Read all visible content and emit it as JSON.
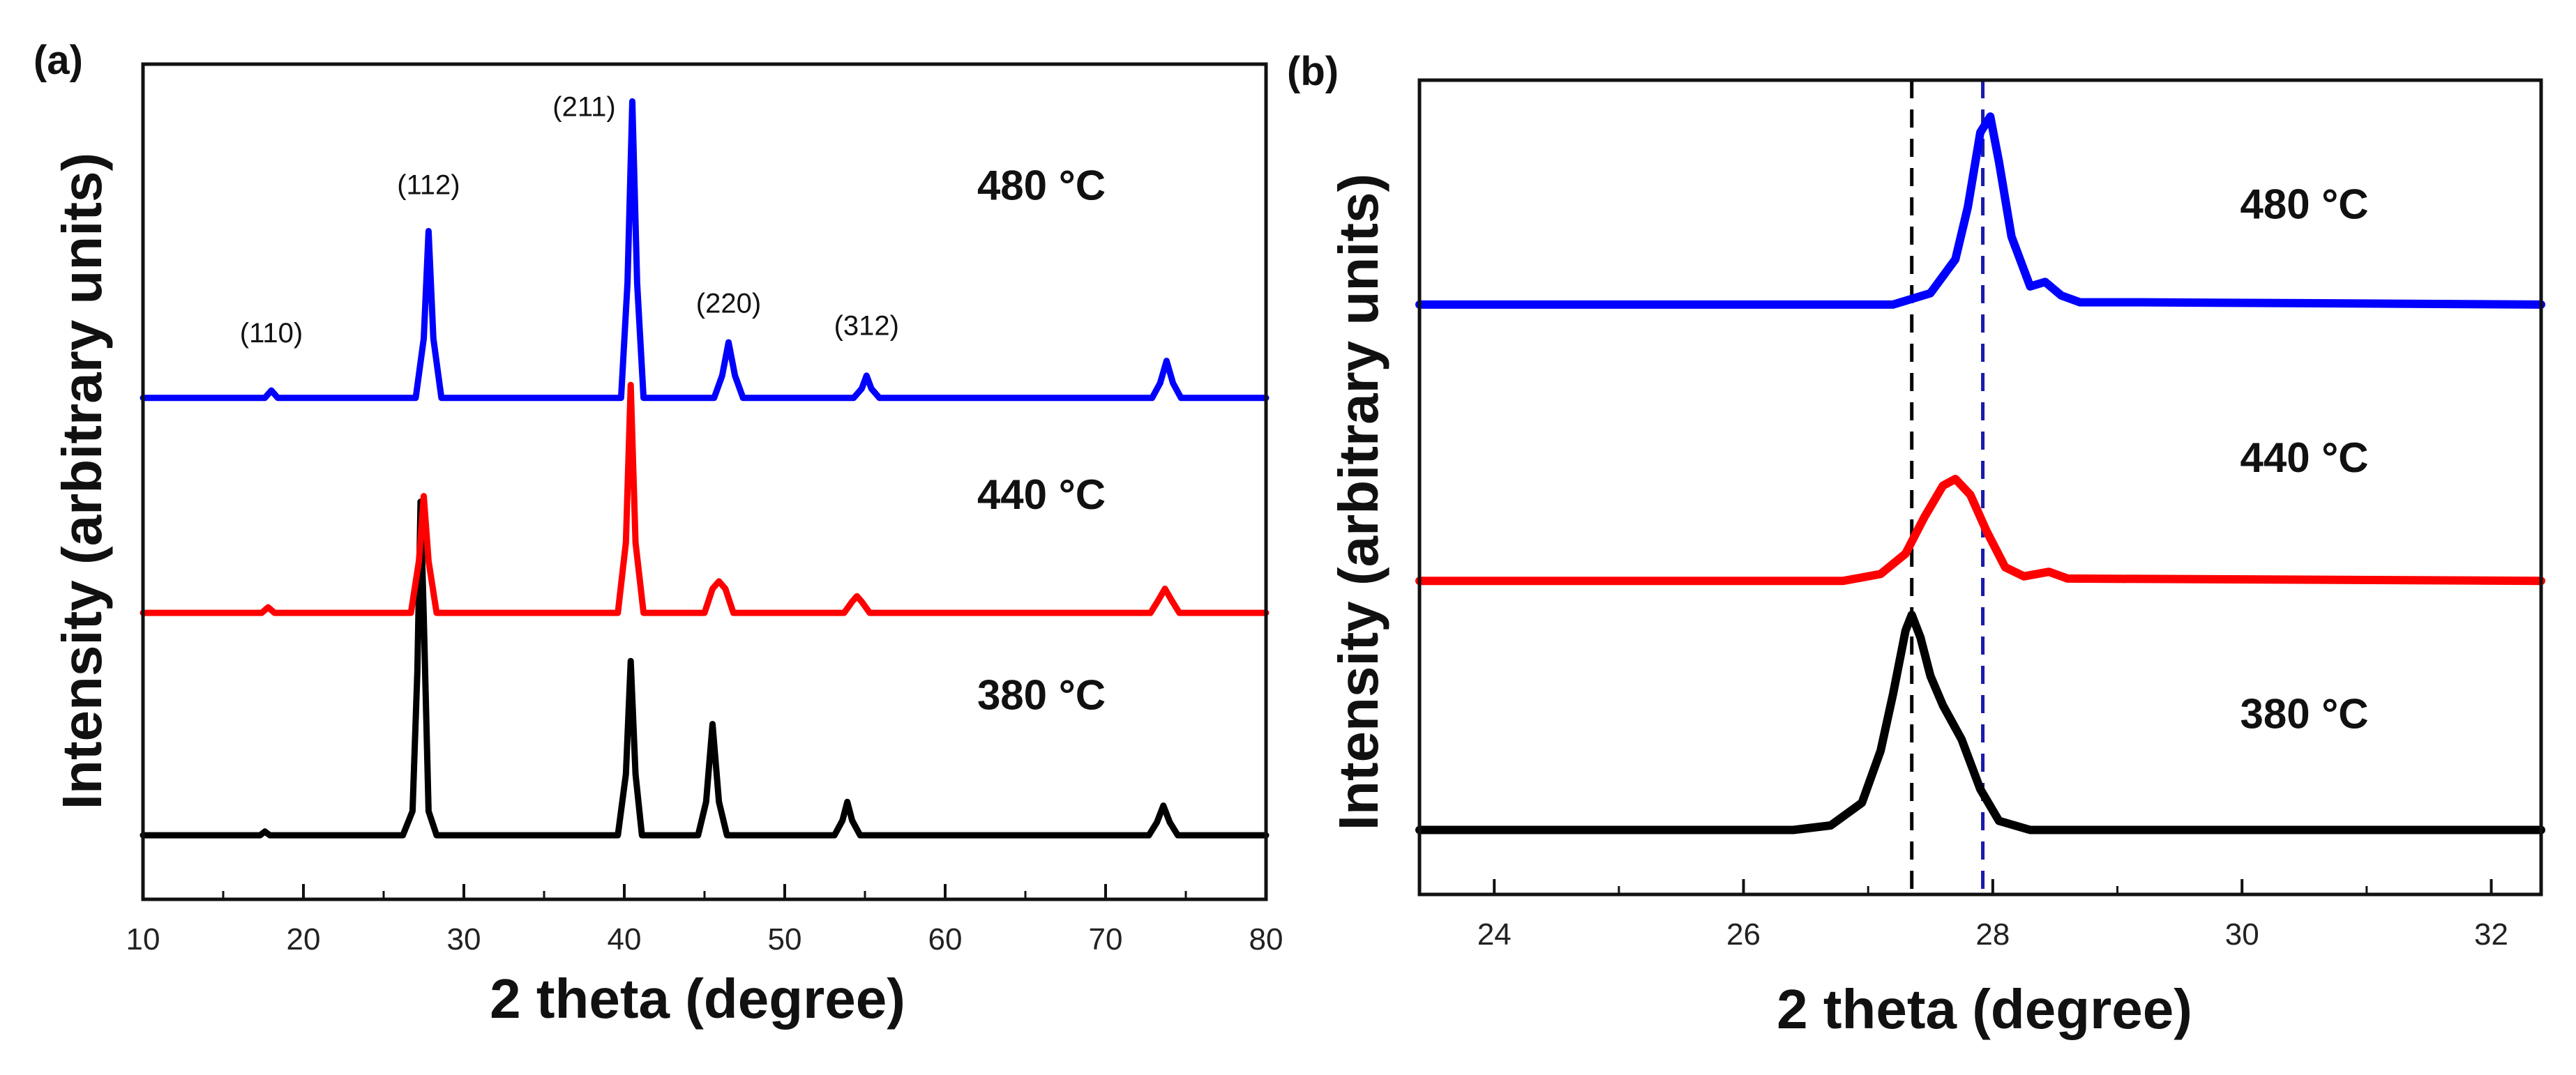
{
  "chart_data": [
    {
      "type": "line",
      "panel_label": "(a)",
      "xlabel": "2 theta (degree)",
      "ylabel": "Intensity (arbitrary units)",
      "xlim": [
        10,
        80
      ],
      "ylim": [
        0,
        3.05
      ],
      "x_ticks": [
        "10",
        "20",
        "30",
        "40",
        "50",
        "60",
        "70",
        "80"
      ],
      "x_tick_values": [
        10,
        20,
        30,
        40,
        50,
        60,
        70,
        80
      ],
      "series": [
        {
          "name": "380 °C",
          "label": "380 °C",
          "color": "#000000",
          "baseline": 0.12,
          "x": [
            10,
            16,
            17.3,
            17.6,
            17.9,
            26.2,
            26.8,
            27.1,
            27.3,
            27.5,
            27.8,
            28.3,
            39.6,
            40.1,
            40.4,
            40.7,
            41.1,
            44.6,
            45.1,
            45.5,
            45.9,
            46.4,
            53.1,
            53.6,
            53.9,
            54.2,
            54.7,
            72.7,
            73.2,
            73.6,
            74.0,
            74.5,
            80
          ],
          "y": [
            0.12,
            0.12,
            0.12,
            0.14,
            0.12,
            0.12,
            0.25,
            1.0,
            1.92,
            1.3,
            0.25,
            0.12,
            0.12,
            0.45,
            1.06,
            0.45,
            0.12,
            0.12,
            0.3,
            0.72,
            0.3,
            0.12,
            0.12,
            0.2,
            0.3,
            0.2,
            0.12,
            0.12,
            0.19,
            0.28,
            0.19,
            0.12,
            0.12
          ]
        },
        {
          "name": "440 °C",
          "label": "440 °C",
          "color": "#ff0000",
          "baseline": 1.32,
          "x": [
            10,
            17.4,
            17.8,
            18.2,
            26.7,
            27.2,
            27.5,
            27.8,
            28.3,
            39.6,
            40.1,
            40.4,
            40.7,
            41.2,
            45.0,
            45.5,
            45.9,
            46.3,
            46.8,
            53.7,
            54.2,
            54.5,
            54.8,
            55.3,
            72.8,
            73.3,
            73.7,
            74.1,
            74.6,
            80
          ],
          "y": [
            1.32,
            1.32,
            1.35,
            1.32,
            1.32,
            1.6,
            1.95,
            1.6,
            1.32,
            1.32,
            1.7,
            2.55,
            1.7,
            1.32,
            1.32,
            1.45,
            1.49,
            1.45,
            1.32,
            1.32,
            1.38,
            1.41,
            1.38,
            1.32,
            1.32,
            1.39,
            1.45,
            1.39,
            1.32,
            1.32
          ]
        },
        {
          "name": "480 °C",
          "label": "480 °C",
          "color": "#0000ff",
          "baseline": 2.48,
          "x": [
            10,
            17.6,
            18.0,
            18.4,
            27.0,
            27.5,
            27.8,
            28.1,
            28.6,
            39.8,
            40.2,
            40.5,
            40.8,
            41.2,
            45.6,
            46.1,
            46.5,
            46.9,
            47.4,
            54.3,
            54.8,
            55.1,
            55.4,
            55.9,
            72.9,
            73.4,
            73.8,
            74.2,
            74.7,
            80
          ],
          "y": [
            2.48,
            2.48,
            2.52,
            2.48,
            2.48,
            2.8,
            3.38,
            2.8,
            2.48,
            2.48,
            3.1,
            4.08,
            3.1,
            2.48,
            2.48,
            2.6,
            2.78,
            2.6,
            2.48,
            2.48,
            2.53,
            2.6,
            2.53,
            2.48,
            2.48,
            2.56,
            2.68,
            2.56,
            2.48,
            2.48
          ]
        }
      ],
      "peak_labels": [
        {
          "text": "(110)",
          "x": 18.0,
          "y": 2.78
        },
        {
          "text": "(112)",
          "x": 27.8,
          "y": 3.58
        },
        {
          "text": "(211)",
          "x": 37.5,
          "y": 4.0
        },
        {
          "text": "(220)",
          "x": 46.5,
          "y": 2.94
        },
        {
          "text": "(312)",
          "x": 55.1,
          "y": 2.82
        }
      ],
      "temp_labels": [
        {
          "text": "480 °C",
          "x": 66.0,
          "y": 3.55
        },
        {
          "text": "440 °C",
          "x": 66.0,
          "y": 1.88
        },
        {
          "text": "380 °C",
          "x": 66.0,
          "y": 0.8
        }
      ]
    },
    {
      "type": "line",
      "panel_label": "(b)",
      "xlabel": "2 theta (degree)",
      "ylabel": "Intensity (arbitrary units)",
      "xlim": [
        23.4,
        32.4
      ],
      "ylim": [
        0,
        3.2
      ],
      "x_ticks": [
        "24",
        "26",
        "28",
        "30",
        "32"
      ],
      "x_tick_values": [
        24,
        26,
        28,
        30,
        32
      ],
      "reference_lines": [
        {
          "x": 27.35,
          "color": "#000000"
        },
        {
          "x": 27.92,
          "color": "#1a1aaa"
        }
      ],
      "series": [
        {
          "name": "380 °C",
          "label": "380 °C",
          "color": "#000000",
          "baseline": 0.1,
          "x": [
            23.4,
            26.4,
            26.7,
            26.95,
            27.1,
            27.2,
            27.3,
            27.35,
            27.42,
            27.5,
            27.6,
            27.75,
            27.9,
            28.05,
            28.3,
            32.4
          ],
          "y": [
            0.1,
            0.1,
            0.12,
            0.22,
            0.45,
            0.7,
            0.98,
            1.05,
            0.95,
            0.78,
            0.65,
            0.5,
            0.28,
            0.14,
            0.1,
            0.1
          ]
        },
        {
          "name": "440 °C",
          "label": "440 °C",
          "color": "#ff0000",
          "baseline": 1.2,
          "x": [
            23.4,
            26.8,
            27.1,
            27.3,
            27.45,
            27.6,
            27.7,
            27.82,
            27.95,
            28.1,
            28.25,
            28.45,
            28.6,
            32.4
          ],
          "y": [
            1.2,
            1.2,
            1.23,
            1.32,
            1.48,
            1.62,
            1.65,
            1.58,
            1.42,
            1.26,
            1.22,
            1.24,
            1.21,
            1.2
          ]
        },
        {
          "name": "480 °C",
          "label": "480 °C",
          "color": "#0000ff",
          "baseline": 2.42,
          "x": [
            23.4,
            27.2,
            27.5,
            27.7,
            27.8,
            27.9,
            27.98,
            28.05,
            28.15,
            28.3,
            28.42,
            28.55,
            28.7,
            29.2,
            32.4
          ],
          "y": [
            2.42,
            2.42,
            2.47,
            2.62,
            2.85,
            3.18,
            3.25,
            3.05,
            2.72,
            2.5,
            2.52,
            2.46,
            2.43,
            2.43,
            2.42
          ]
        }
      ],
      "temp_labels": [
        {
          "text": "480 °C",
          "x": 30.5,
          "y": 2.8
        },
        {
          "text": "440 °C",
          "x": 30.5,
          "y": 1.68
        },
        {
          "text": "380 °C",
          "x": 30.5,
          "y": 0.55
        }
      ]
    }
  ]
}
